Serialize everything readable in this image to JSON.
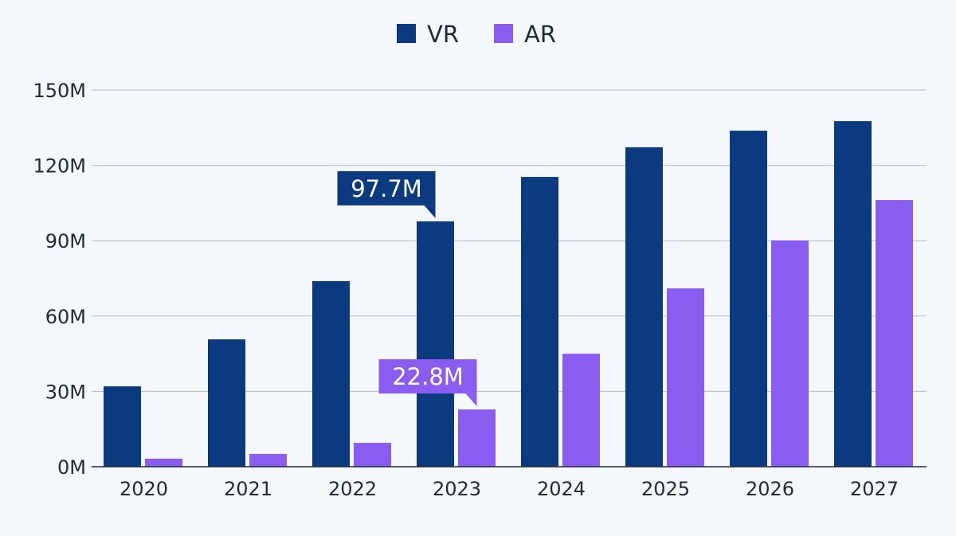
{
  "chart_data": {
    "type": "bar",
    "title": "",
    "xlabel": "",
    "ylabel": "",
    "categories": [
      "2020",
      "2021",
      "2022",
      "2023",
      "2024",
      "2025",
      "2026",
      "2027"
    ],
    "series": [
      {
        "name": "VR",
        "color": "#0b3a7e",
        "values": [
          32.0,
          50.7,
          73.9,
          97.7,
          115.4,
          127.2,
          133.8,
          137.6
        ]
      },
      {
        "name": "AR",
        "color": "#8b5cf0",
        "values": [
          3.2,
          5.1,
          9.5,
          22.8,
          45.0,
          71.0,
          90.1,
          106.2
        ]
      }
    ],
    "ylim": [
      0,
      150
    ],
    "yticks": [
      0,
      30,
      60,
      90,
      120,
      150
    ],
    "ytick_labels": [
      "0M",
      "30M",
      "60M",
      "90M",
      "120M",
      "150M"
    ],
    "grid": true,
    "legend_position": "top-center",
    "annotations": [
      {
        "series": "VR",
        "category": "2023",
        "text": "97.7M"
      },
      {
        "series": "AR",
        "category": "2023",
        "text": "22.8M"
      }
    ]
  }
}
